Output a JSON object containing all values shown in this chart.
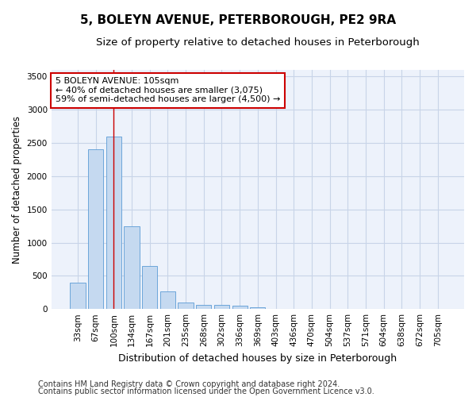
{
  "title1": "5, BOLEYN AVENUE, PETERBOROUGH, PE2 9RA",
  "title2": "Size of property relative to detached houses in Peterborough",
  "xlabel": "Distribution of detached houses by size in Peterborough",
  "ylabel": "Number of detached properties",
  "categories": [
    "33sqm",
    "67sqm",
    "100sqm",
    "134sqm",
    "167sqm",
    "201sqm",
    "235sqm",
    "268sqm",
    "302sqm",
    "336sqm",
    "369sqm",
    "403sqm",
    "436sqm",
    "470sqm",
    "504sqm",
    "537sqm",
    "571sqm",
    "604sqm",
    "638sqm",
    "672sqm",
    "705sqm"
  ],
  "bar_values": [
    400,
    2400,
    2600,
    1250,
    650,
    260,
    100,
    65,
    65,
    50,
    30,
    0,
    0,
    0,
    0,
    0,
    0,
    0,
    0,
    0,
    0
  ],
  "bar_color": "#c5d9f0",
  "bar_edge_color": "#5b9bd5",
  "vline_x": 2,
  "vline_color": "#cc0000",
  "annotation_text": "5 BOLEYN AVENUE: 105sqm\n← 40% of detached houses are smaller (3,075)\n59% of semi-detached houses are larger (4,500) →",
  "annotation_box_facecolor": "#ffffff",
  "annotation_box_edgecolor": "#cc0000",
  "ylim": [
    0,
    3600
  ],
  "yticks": [
    0,
    500,
    1000,
    1500,
    2000,
    2500,
    3000,
    3500
  ],
  "footer1": "Contains HM Land Registry data © Crown copyright and database right 2024.",
  "footer2": "Contains public sector information licensed under the Open Government Licence v3.0.",
  "fig_bg_color": "#ffffff",
  "plot_bg_color": "#edf2fb",
  "grid_color": "#c8d4e8",
  "title1_fontsize": 11,
  "title2_fontsize": 9.5,
  "xlabel_fontsize": 9,
  "ylabel_fontsize": 8.5,
  "tick_fontsize": 7.5,
  "footer_fontsize": 7,
  "ann_fontsize": 8
}
